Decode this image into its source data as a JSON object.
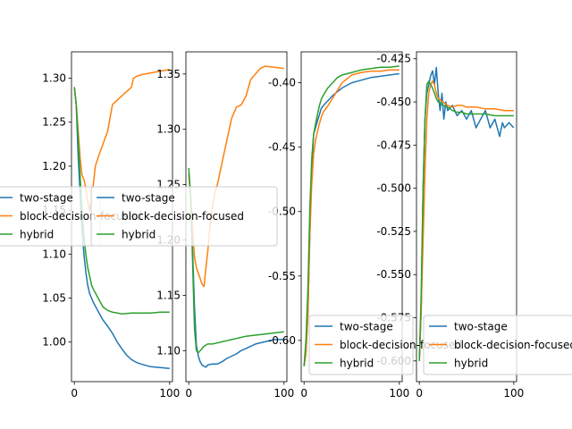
{
  "chart_data": [
    {
      "type": "line",
      "xlim": [
        -3,
        103
      ],
      "ylim": [
        0.955,
        1.33
      ],
      "xticks": [
        "0",
        "100"
      ],
      "yticks": [
        "1.00",
        "1.05",
        "1.10",
        "1.15",
        "1.20",
        "1.25",
        "1.30"
      ],
      "legend": {
        "placement": "center-left",
        "entries": [
          "two-stage",
          "block-decision-focused",
          "hybrid"
        ]
      },
      "series": [
        {
          "name": "two-stage",
          "color": "#1f77b4",
          "x": [
            0,
            2,
            4,
            6,
            8,
            10,
            12,
            14,
            16,
            18,
            20,
            25,
            30,
            35,
            40,
            45,
            50,
            55,
            60,
            65,
            70,
            80,
            90,
            100
          ],
          "y": [
            1.29,
            1.27,
            1.21,
            1.17,
            1.13,
            1.1,
            1.08,
            1.065,
            1.055,
            1.05,
            1.045,
            1.035,
            1.025,
            1.018,
            1.01,
            1.0,
            0.992,
            0.985,
            0.98,
            0.977,
            0.975,
            0.972,
            0.971,
            0.97
          ]
        },
        {
          "name": "block-decision-focused",
          "color": "#ff7f0e",
          "x": [
            0,
            2,
            4,
            6,
            8,
            10,
            12,
            14,
            16,
            18,
            20,
            22,
            25,
            30,
            35,
            40,
            45,
            50,
            55,
            60,
            62,
            65,
            70,
            80,
            90,
            100
          ],
          "y": [
            1.29,
            1.27,
            1.24,
            1.21,
            1.19,
            1.185,
            1.175,
            1.16,
            1.15,
            1.16,
            1.18,
            1.2,
            1.21,
            1.225,
            1.24,
            1.27,
            1.275,
            1.28,
            1.285,
            1.29,
            1.3,
            1.302,
            1.304,
            1.306,
            1.308,
            1.31
          ]
        },
        {
          "name": "hybrid",
          "color": "#2ca02c",
          "x": [
            0,
            2,
            4,
            6,
            8,
            10,
            12,
            14,
            16,
            18,
            20,
            25,
            30,
            35,
            40,
            45,
            50,
            60,
            70,
            80,
            90,
            100
          ],
          "y": [
            1.29,
            1.27,
            1.23,
            1.19,
            1.15,
            1.12,
            1.1,
            1.085,
            1.075,
            1.065,
            1.06,
            1.05,
            1.04,
            1.036,
            1.034,
            1.033,
            1.032,
            1.033,
            1.033,
            1.033,
            1.034,
            1.034
          ]
        }
      ]
    },
    {
      "type": "line",
      "xlim": [
        -3,
        103
      ],
      "ylim": [
        1.072,
        1.37
      ],
      "xticks": [
        "0",
        "100"
      ],
      "yticks": [
        "1.10",
        "1.15",
        "1.20",
        "1.25",
        "1.30",
        "1.35"
      ],
      "legend": {
        "placement": "center-left",
        "entries": [
          "two-stage",
          "block-decision-focused",
          "hybrid"
        ]
      },
      "series": [
        {
          "name": "two-stage",
          "color": "#1f77b4",
          "x": [
            0,
            2,
            4,
            6,
            8,
            10,
            12,
            14,
            16,
            18,
            20,
            25,
            30,
            35,
            40,
            45,
            50,
            55,
            60,
            65,
            70,
            80,
            90,
            100
          ],
          "y": [
            1.26,
            1.24,
            1.19,
            1.14,
            1.105,
            1.095,
            1.09,
            1.087,
            1.086,
            1.085,
            1.087,
            1.088,
            1.088,
            1.09,
            1.093,
            1.095,
            1.097,
            1.1,
            1.102,
            1.104,
            1.106,
            1.108,
            1.11,
            1.11
          ]
        },
        {
          "name": "block-decision-focused",
          "color": "#ff7f0e",
          "x": [
            0,
            2,
            4,
            6,
            8,
            10,
            12,
            14,
            16,
            18,
            20,
            22,
            25,
            28,
            30,
            35,
            40,
            45,
            50,
            55,
            60,
            65,
            70,
            75,
            80,
            90,
            100
          ],
          "y": [
            1.26,
            1.24,
            1.21,
            1.185,
            1.175,
            1.17,
            1.165,
            1.16,
            1.158,
            1.175,
            1.19,
            1.21,
            1.23,
            1.245,
            1.25,
            1.27,
            1.29,
            1.31,
            1.32,
            1.322,
            1.33,
            1.345,
            1.35,
            1.355,
            1.357,
            1.356,
            1.355
          ]
        },
        {
          "name": "hybrid",
          "color": "#2ca02c",
          "x": [
            0,
            2,
            4,
            6,
            8,
            10,
            12,
            14,
            16,
            18,
            20,
            25,
            30,
            35,
            40,
            45,
            50,
            55,
            60,
            70,
            80,
            90,
            100
          ],
          "y": [
            1.265,
            1.24,
            1.18,
            1.12,
            1.1,
            1.098,
            1.1,
            1.102,
            1.104,
            1.105,
            1.106,
            1.106,
            1.107,
            1.108,
            1.109,
            1.11,
            1.111,
            1.112,
            1.113,
            1.114,
            1.115,
            1.116,
            1.117
          ]
        }
      ]
    },
    {
      "type": "line",
      "xlim": [
        -3,
        103
      ],
      "ylim": [
        -0.632,
        -0.376
      ],
      "xticks": [
        "0",
        "100"
      ],
      "yticks": [
        "-0.40",
        "-0.45",
        "-0.50",
        "-0.55",
        "-0.60"
      ],
      "legend": {
        "placement": "lower-right",
        "entries": [
          "two-stage",
          "block-decision-focused",
          "hybrid"
        ]
      },
      "series": [
        {
          "name": "two-stage",
          "color": "#1f77b4",
          "x": [
            0,
            2,
            4,
            6,
            8,
            10,
            12,
            14,
            16,
            18,
            20,
            25,
            30,
            35,
            40,
            50,
            60,
            70,
            80,
            90,
            100
          ],
          "y": [
            -0.62,
            -0.61,
            -0.58,
            -0.52,
            -0.47,
            -0.44,
            -0.435,
            -0.43,
            -0.425,
            -0.42,
            -0.418,
            -0.414,
            -0.41,
            -0.407,
            -0.404,
            -0.4,
            -0.398,
            -0.396,
            -0.395,
            -0.394,
            -0.393
          ]
        },
        {
          "name": "block-decision-focused",
          "color": "#ff7f0e",
          "x": [
            0,
            2,
            4,
            6,
            8,
            10,
            12,
            14,
            16,
            18,
            20,
            25,
            30,
            35,
            40,
            50,
            60,
            70,
            80,
            90,
            100
          ],
          "y": [
            -0.62,
            -0.61,
            -0.58,
            -0.52,
            -0.48,
            -0.455,
            -0.445,
            -0.438,
            -0.432,
            -0.427,
            -0.423,
            -0.418,
            -0.412,
            -0.406,
            -0.4,
            -0.394,
            -0.392,
            -0.391,
            -0.391,
            -0.39,
            -0.39
          ]
        },
        {
          "name": "hybrid",
          "color": "#2ca02c",
          "x": [
            0,
            2,
            4,
            6,
            8,
            10,
            12,
            14,
            16,
            18,
            20,
            25,
            30,
            35,
            40,
            50,
            60,
            70,
            80,
            90,
            100
          ],
          "y": [
            -0.62,
            -0.6,
            -0.56,
            -0.5,
            -0.46,
            -0.44,
            -0.432,
            -0.425,
            -0.418,
            -0.413,
            -0.41,
            -0.404,
            -0.4,
            -0.396,
            -0.394,
            -0.392,
            -0.39,
            -0.389,
            -0.388,
            -0.388,
            -0.387
          ]
        }
      ]
    },
    {
      "type": "line",
      "xlim": [
        -3,
        103
      ],
      "ylim": [
        -0.612,
        -0.421
      ],
      "xticks": [
        "0",
        "100"
      ],
      "yticks": [
        "-0.425",
        "-0.450",
        "-0.475",
        "-0.500",
        "-0.525",
        "-0.550",
        "-0.575",
        "-0.600"
      ],
      "legend": {
        "placement": "lower-right",
        "entries": [
          "two-stage",
          "block-decision-focused",
          "hybrid"
        ]
      },
      "series": [
        {
          "name": "two-stage",
          "color": "#1f77b4",
          "x": [
            0,
            2,
            4,
            6,
            8,
            10,
            12,
            14,
            16,
            18,
            20,
            22,
            24,
            26,
            28,
            30,
            35,
            40,
            45,
            50,
            55,
            60,
            65,
            70,
            75,
            80,
            85,
            88,
            90,
            95,
            100
          ],
          "y": [
            -0.6,
            -0.57,
            -0.5,
            -0.46,
            -0.445,
            -0.44,
            -0.435,
            -0.432,
            -0.44,
            -0.43,
            -0.445,
            -0.455,
            -0.445,
            -0.46,
            -0.45,
            -0.455,
            -0.452,
            -0.458,
            -0.455,
            -0.46,
            -0.455,
            -0.465,
            -0.46,
            -0.455,
            -0.465,
            -0.46,
            -0.47,
            -0.462,
            -0.465,
            -0.462,
            -0.465
          ]
        },
        {
          "name": "block-decision-focused",
          "color": "#ff7f0e",
          "x": [
            0,
            2,
            4,
            6,
            8,
            10,
            12,
            14,
            16,
            18,
            20,
            25,
            30,
            35,
            40,
            45,
            50,
            60,
            70,
            80,
            90,
            100
          ],
          "y": [
            -0.6,
            -0.57,
            -0.53,
            -0.49,
            -0.46,
            -0.445,
            -0.44,
            -0.438,
            -0.44,
            -0.445,
            -0.448,
            -0.45,
            -0.452,
            -0.453,
            -0.452,
            -0.452,
            -0.453,
            -0.453,
            -0.454,
            -0.454,
            -0.455,
            -0.455
          ]
        },
        {
          "name": "hybrid",
          "color": "#2ca02c",
          "x": [
            0,
            2,
            4,
            6,
            8,
            10,
            12,
            14,
            16,
            18,
            20,
            25,
            30,
            35,
            40,
            45,
            50,
            60,
            70,
            80,
            90,
            100
          ],
          "y": [
            -0.6,
            -0.56,
            -0.5,
            -0.46,
            -0.44,
            -0.438,
            -0.44,
            -0.442,
            -0.445,
            -0.448,
            -0.45,
            -0.452,
            -0.453,
            -0.455,
            -0.456,
            -0.456,
            -0.457,
            -0.457,
            -0.457,
            -0.458,
            -0.458,
            -0.458
          ]
        }
      ]
    }
  ]
}
